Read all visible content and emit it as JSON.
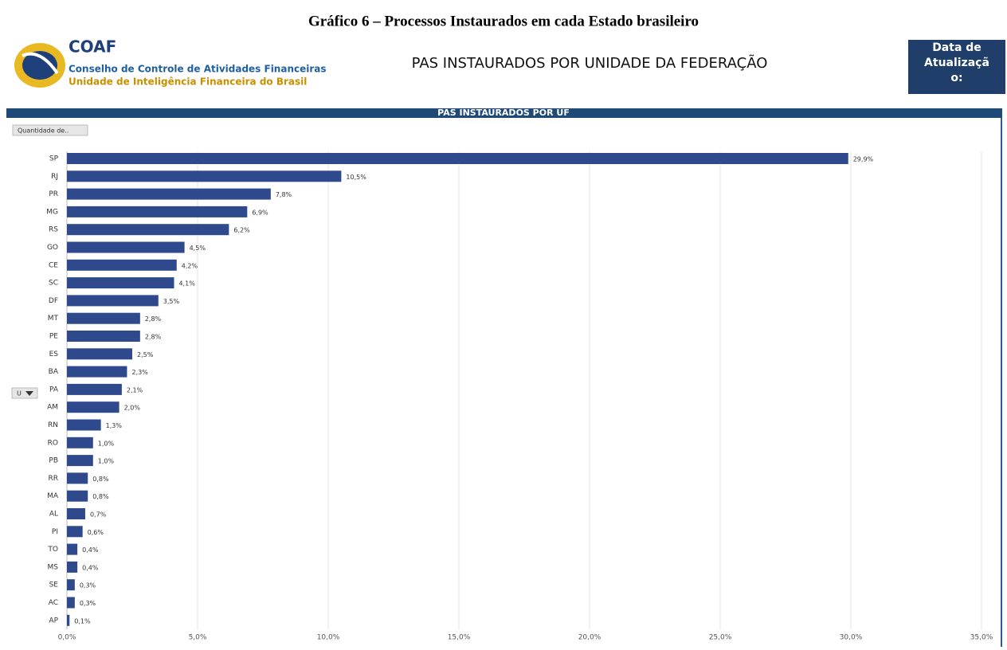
{
  "document_title": "Gráfico 6 – Processos Instaurados em cada Estado brasileiro",
  "header": {
    "brand": "COAF",
    "line1": "Conselho de Controle de Atividades Financeiras",
    "line2": "Unidade de Inteligência Financeira do Brasil",
    "title": "PAS INSTAURADOS POR UNIDADE DA FEDERAÇÃO",
    "update_label": [
      "Data de",
      "Atualizaçã",
      "o:"
    ]
  },
  "controls": {
    "measure_button": "Quantidade de..",
    "sort_dropdown": "U"
  },
  "chart_data": {
    "type": "hbar",
    "title": "PAS INSTAURADOS POR UF",
    "categories": [
      "SP",
      "RJ",
      "PR",
      "MG",
      "RS",
      "GO",
      "CE",
      "SC",
      "DF",
      "MT",
      "PE",
      "ES",
      "BA",
      "PA",
      "AM",
      "RN",
      "RO",
      "PB",
      "RR",
      "MA",
      "AL",
      "PI",
      "TO",
      "MS",
      "SE",
      "AC",
      "AP"
    ],
    "values": [
      29.9,
      10.5,
      7.8,
      6.9,
      6.2,
      4.5,
      4.2,
      4.1,
      3.5,
      2.8,
      2.8,
      2.5,
      2.3,
      2.1,
      2.0,
      1.3,
      1.0,
      1.0,
      0.8,
      0.8,
      0.7,
      0.6,
      0.4,
      0.4,
      0.3,
      0.3,
      0.1
    ],
    "value_labels": [
      "29,9%",
      "10,5%",
      "7,8%",
      "6,9%",
      "6,2%",
      "4,5%",
      "4,2%",
      "4,1%",
      "3,5%",
      "2,8%",
      "2,8%",
      "2,5%",
      "2,3%",
      "2,1%",
      "2,0%",
      "1,3%",
      "1,0%",
      "1,0%",
      "0,8%",
      "0,8%",
      "0,7%",
      "0,6%",
      "0,4%",
      "0,4%",
      "0,3%",
      "0,3%",
      "0,1%"
    ],
    "color": "#2e4a8c",
    "xlim": [
      0,
      35
    ],
    "xticks": [
      {
        "value": 0,
        "label": "0,0%"
      },
      {
        "value": 5,
        "label": "5,0%"
      },
      {
        "value": 10,
        "label": "10,0%"
      },
      {
        "value": 15,
        "label": "15,0%"
      },
      {
        "value": 20,
        "label": "20,0%"
      },
      {
        "value": 25,
        "label": "25,0%"
      },
      {
        "value": 30,
        "label": "30,0%"
      },
      {
        "value": 35,
        "label": "35,0%"
      }
    ],
    "grid": true
  }
}
